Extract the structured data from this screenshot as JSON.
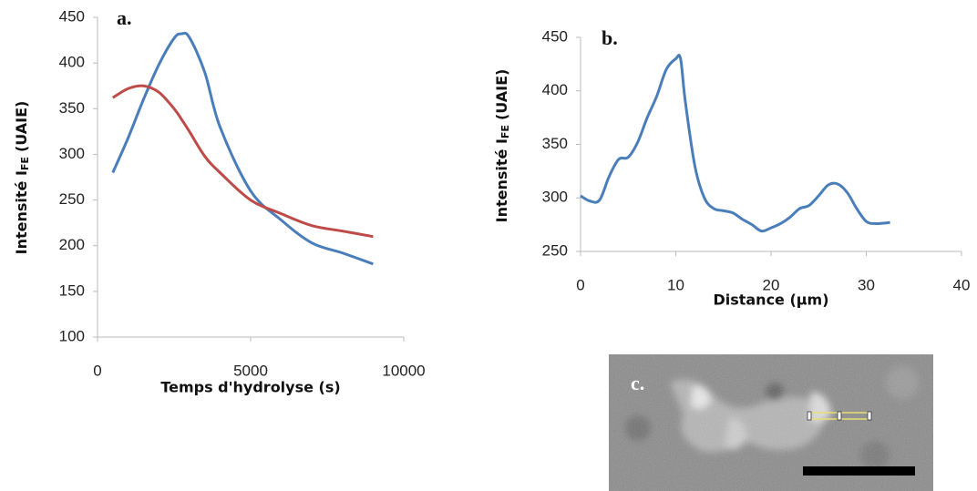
{
  "chart_data": [
    {
      "type": "line",
      "panel_label": "a.",
      "xlabel": "Temps d'hydrolyse (s)",
      "ylabel": [
        "Intensité I",
        "FE",
        "(UAIE)"
      ],
      "x": [
        500,
        1000,
        1500,
        2000,
        2500,
        2750,
        3000,
        3500,
        4000,
        5000,
        6000,
        7000,
        8000,
        9000
      ],
      "series": [
        {
          "color": "#4a7ebb",
          "values": [
            280,
            318,
            360,
            398,
            427,
            432,
            428,
            390,
            330,
            260,
            228,
            203,
            192,
            180
          ]
        },
        {
          "color": "#be4b48",
          "values": [
            362,
            372,
            375,
            368,
            350,
            338,
            325,
            298,
            280,
            250,
            235,
            222,
            216,
            210
          ]
        }
      ],
      "xlim": [
        0,
        10000
      ],
      "xticks": [
        0,
        5000,
        10000
      ],
      "ylim": [
        100,
        450
      ],
      "yticks": [
        100,
        150,
        200,
        250,
        300,
        350,
        400,
        450
      ]
    },
    {
      "type": "line",
      "panel_label": "b.",
      "xlabel": "Distance (µm)",
      "ylabel": [
        "Intensité I",
        "FE",
        "(UAIE)"
      ],
      "x": [
        0,
        1,
        2,
        3,
        4,
        5,
        6,
        7,
        8,
        9,
        10,
        10.5,
        11,
        12,
        13,
        14,
        15,
        16,
        17,
        18,
        19,
        20,
        21,
        22,
        23,
        24,
        25,
        26,
        27,
        28,
        29,
        30,
        31,
        32.5
      ],
      "series": [
        {
          "color": "#4a7ebb",
          "values": [
            302,
            297,
            298,
            320,
            336,
            338,
            352,
            375,
            395,
            420,
            430,
            430,
            390,
            330,
            300,
            290,
            288,
            286,
            280,
            275,
            269,
            272,
            276,
            282,
            290,
            293,
            302,
            312,
            313,
            305,
            290,
            278,
            276,
            277
          ]
        }
      ],
      "xlim": [
        0,
        40
      ],
      "xticks": [
        0,
        10,
        20,
        30,
        40
      ],
      "ylim": [
        250,
        450
      ],
      "yticks": [
        250,
        300,
        350,
        400,
        450
      ]
    }
  ],
  "image_panel": {
    "label": "c."
  }
}
